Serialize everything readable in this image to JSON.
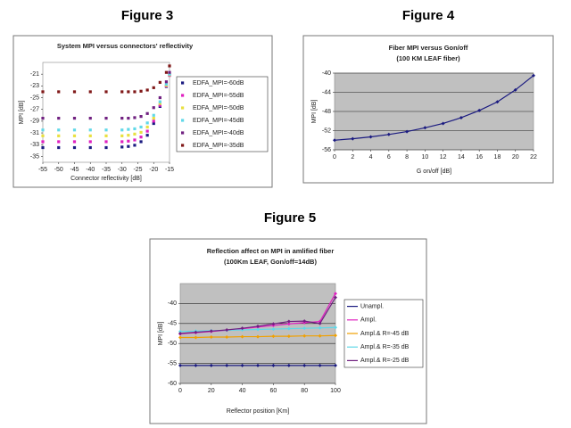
{
  "chart_data": [
    {
      "type": "scatter",
      "figure_label": "Figure 3",
      "title": "System MPI versus connectors' reflectivity",
      "x_label": "Connector reflectivity [dB]",
      "y_label": "MPI [dB]",
      "x": [
        -55,
        -50,
        -45,
        -40,
        -35,
        -30,
        -28,
        -26,
        -24,
        -22,
        -20,
        -18,
        -16,
        -15
      ],
      "xlim": [
        -55,
        -15
      ],
      "xticks": [
        -55,
        -50,
        -45,
        -40,
        -35,
        -30,
        -25,
        -20,
        -15
      ],
      "ylim": [
        -36,
        -19
      ],
      "yticks": [
        -35,
        -33,
        -31,
        -29,
        -27,
        -25,
        -23,
        -21
      ],
      "plot_background": "#ffffff",
      "grid": false,
      "legend": "right",
      "series": [
        {
          "name": "EDFA_MPI=-60dB",
          "color": "#1a1a80",
          "values": [
            -33.5,
            -33.5,
            -33.5,
            -33.5,
            -33.5,
            -33.4,
            -33.3,
            -33.1,
            -32.5,
            -31.4,
            -29.4,
            -26.5,
            -23.1,
            -21.2
          ]
        },
        {
          "name": "EDFA_MPI=-55dB",
          "color": "#e020c0",
          "values": [
            -32.5,
            -32.5,
            -32.5,
            -32.5,
            -32.5,
            -32.5,
            -32.4,
            -32.2,
            -31.7,
            -30.7,
            -29.0,
            -26.3,
            -23.0,
            -21.2
          ]
        },
        {
          "name": "EDFA_MPI=-50dB",
          "color": "#e8e040",
          "values": [
            -31.5,
            -31.5,
            -31.5,
            -31.5,
            -31.5,
            -31.5,
            -31.4,
            -31.2,
            -30.9,
            -30.0,
            -28.5,
            -26.0,
            -22.9,
            -21.1
          ]
        },
        {
          "name": "EDFA_MPI=-45dB",
          "color": "#60d8e8",
          "values": [
            -30.5,
            -30.5,
            -30.5,
            -30.5,
            -30.5,
            -30.5,
            -30.4,
            -30.3,
            -30.0,
            -29.3,
            -28.0,
            -25.7,
            -22.7,
            -21.0
          ]
        },
        {
          "name": "EDFA_MPI=-40dB",
          "color": "#702080",
          "values": [
            -28.5,
            -28.5,
            -28.5,
            -28.5,
            -28.5,
            -28.5,
            -28.5,
            -28.4,
            -28.2,
            -27.7,
            -26.7,
            -25.0,
            -22.3,
            -20.7
          ]
        },
        {
          "name": "EDFA_MPI=-35dB",
          "color": "#801818",
          "values": [
            -24.0,
            -24.0,
            -24.0,
            -24.0,
            -24.0,
            -24.0,
            -24.0,
            -24.0,
            -23.9,
            -23.7,
            -23.3,
            -22.4,
            -20.7,
            -19.6
          ]
        }
      ]
    },
    {
      "type": "line",
      "figure_label": "Figure 4",
      "title": "Fiber MPI versus Gon/off",
      "subtitle": "(100 KM LEAF fiber)",
      "x_label": "G on/off [dB]",
      "y_label": "MPI [dB]",
      "x": [
        0,
        2,
        4,
        6,
        8,
        10,
        12,
        14,
        16,
        18,
        20,
        22
      ],
      "values": [
        -54,
        -53.7,
        -53.3,
        -52.8,
        -52.2,
        -51.4,
        -50.5,
        -49.3,
        -47.8,
        -46.0,
        -43.5,
        -40.5
      ],
      "color": "#1a1a80",
      "markers": true,
      "xlim": [
        0,
        22
      ],
      "xticks": [
        0,
        2,
        4,
        6,
        8,
        10,
        12,
        14,
        16,
        18,
        20,
        22
      ],
      "ylim": [
        -56,
        -40
      ],
      "yticks": [
        -56,
        -52,
        -48,
        -44,
        -40
      ],
      "plot_background": "#c0c0c0",
      "grid": true
    },
    {
      "type": "line",
      "figure_label": "Figure 5",
      "title": "Reflection affect on MPI in amlified fiber",
      "subtitle": "(100Km LEAF, Gon/off=14dB)",
      "x_label": "Reflector position [Km]",
      "y_label": "MPI [dB]",
      "x": [
        0,
        10,
        20,
        30,
        40,
        50,
        60,
        70,
        80,
        90,
        100
      ],
      "xlim": [
        0,
        100
      ],
      "xticks": [
        0,
        20,
        40,
        60,
        80,
        100
      ],
      "ylim": [
        -60,
        -35
      ],
      "yticks": [
        -60,
        -55,
        -50,
        -45,
        -40
      ],
      "plot_background": "#c0c0c0",
      "grid": true,
      "legend": "right",
      "markers": true,
      "series": [
        {
          "name": "Unampl.",
          "color": "#1a1a80",
          "values": [
            -55.5,
            -55.5,
            -55.5,
            -55.5,
            -55.5,
            -55.5,
            -55.5,
            -55.5,
            -55.5,
            -55.5,
            -55.5
          ]
        },
        {
          "name": "Ampl.",
          "color": "#e020c0",
          "values": [
            -47.6,
            -47.3,
            -47,
            -46.7,
            -46.3,
            -45.9,
            -45.5,
            -45.1,
            -44.8,
            -44.5,
            -37.5
          ]
        },
        {
          "name": "Ampl.& R=-45 dB",
          "color": "#f0a000",
          "values": [
            -48.5,
            -48.5,
            -48.4,
            -48.4,
            -48.3,
            -48.3,
            -48.2,
            -48.2,
            -48.1,
            -48.1,
            -48.0
          ]
        },
        {
          "name": "Ampl.& R=-35 dB",
          "color": "#60d8e8",
          "values": [
            -47,
            -46.9,
            -46.8,
            -46.7,
            -46.6,
            -46.5,
            -46.4,
            -46.3,
            -46.2,
            -46.1,
            -46.0
          ]
        },
        {
          "name": "Ampl.& R=-25 dB",
          "color": "#702080",
          "values": [
            -47.5,
            -47.2,
            -46.9,
            -46.6,
            -46.2,
            -45.7,
            -45.1,
            -44.5,
            -44.4,
            -45.0,
            -38.5
          ]
        }
      ]
    }
  ]
}
